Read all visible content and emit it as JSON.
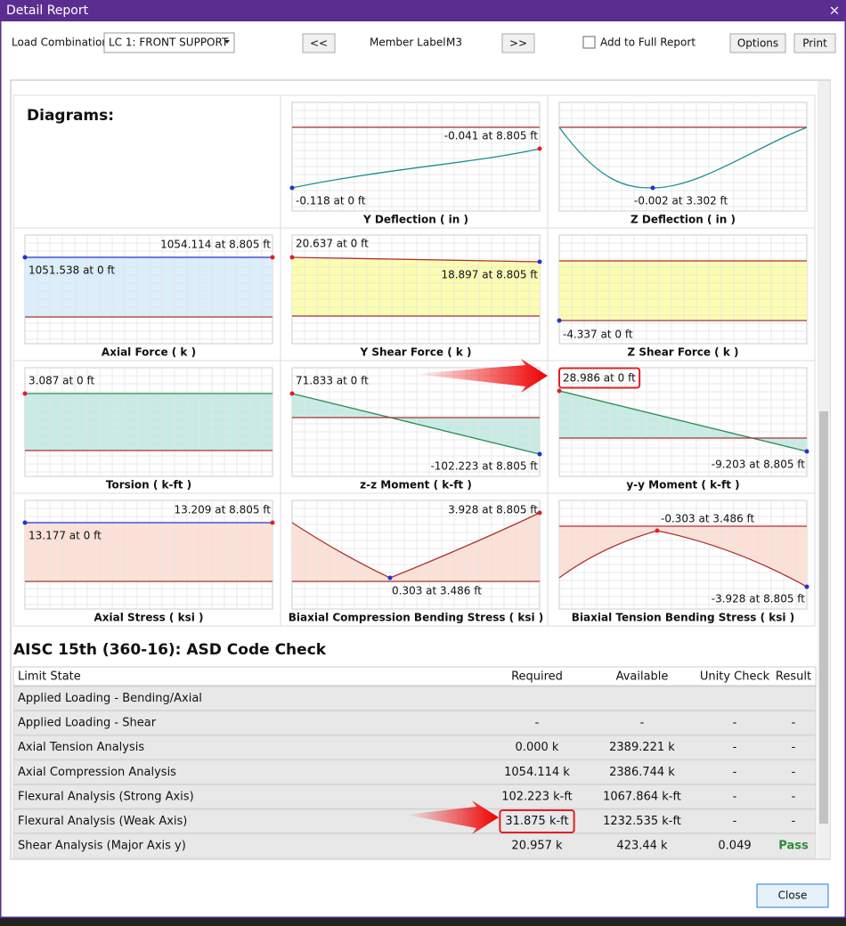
{
  "window": {
    "title": "Detail Report",
    "close": "×"
  },
  "toolbar": {
    "load_label": "Load Combination:",
    "load_value": "LC 1: FRONT SUPPORT",
    "prev": "<<",
    "member_label": "Member Label:",
    "member_value": "M3",
    "next": ">>",
    "add_report": "Add to Full Report",
    "options": "Options",
    "print": "Print"
  },
  "diagrams": {
    "heading": "Diagrams:",
    "panels": [
      {
        "title": "Y Deflection ( in )",
        "labels": [
          "-0.041 at 8.805 ft",
          "-0.118 at 0 ft"
        ]
      },
      {
        "title": "Z Deflection ( in )",
        "labels": [
          "-0.002 at 3.302 ft"
        ]
      },
      {
        "title": "Axial Force ( k )",
        "labels": [
          "1054.114 at 8.805 ft",
          "1051.538 at 0 ft"
        ]
      },
      {
        "title": "Y Shear Force ( k )",
        "labels": [
          "20.637 at 0 ft",
          "18.897 at 8.805 ft"
        ]
      },
      {
        "title": "Z Shear Force ( k )",
        "labels": [
          "-4.337 at 0 ft"
        ]
      },
      {
        "title": "Torsion ( k-ft )",
        "labels": [
          "3.087 at 0 ft"
        ]
      },
      {
        "title": "z-z Moment ( k-ft )",
        "labels": [
          "71.833 at 0 ft",
          "-102.223 at 8.805 ft"
        ]
      },
      {
        "title": "y-y Moment ( k-ft )",
        "labels": [
          "28.986 at 0 ft",
          "-9.203 at 8.805 ft"
        ]
      },
      {
        "title": "Axial Stress ( ksi )",
        "labels": [
          "13.209 at 8.805 ft",
          "13.177 at 0 ft"
        ]
      },
      {
        "title": "Biaxial Compression Bending Stress ( ksi )",
        "labels": [
          "3.928 at 8.805 ft",
          "0.303 at 3.486 ft"
        ]
      },
      {
        "title": "Biaxial Tension Bending Stress ( ksi )",
        "labels": [
          "-0.303 at 3.486 ft",
          "-3.928 at 8.805 ft"
        ]
      }
    ]
  },
  "code_check": {
    "title": "AISC 15th (360-16): ASD Code Check",
    "columns": [
      "Limit State",
      "Required",
      "Available",
      "Unity Check",
      "Result"
    ],
    "rows": [
      [
        "Applied Loading - Bending/Axial"
      ],
      [
        "Applied Loading - Shear",
        "-",
        "-",
        "-",
        "-"
      ],
      [
        "Axial Tension Analysis",
        "0.000 k",
        "2389.221 k",
        "-",
        "-"
      ],
      [
        "Axial Compression Analysis",
        "1054.114 k",
        "2386.744 k",
        "-",
        "-"
      ],
      [
        "Flexural Analysis (Strong Axis)",
        "102.223 k-ft",
        "1067.864 k-ft",
        "-",
        "-"
      ],
      [
        "Flexural Analysis (Weak Axis)",
        "31.875 k-ft",
        "1232.535 k-ft",
        "-",
        "-"
      ],
      [
        "Shear Analysis (Major Axis y)",
        "20.957 k",
        "423.44 k",
        "0.049",
        "Pass"
      ]
    ]
  },
  "footer": {
    "close": "Close"
  }
}
